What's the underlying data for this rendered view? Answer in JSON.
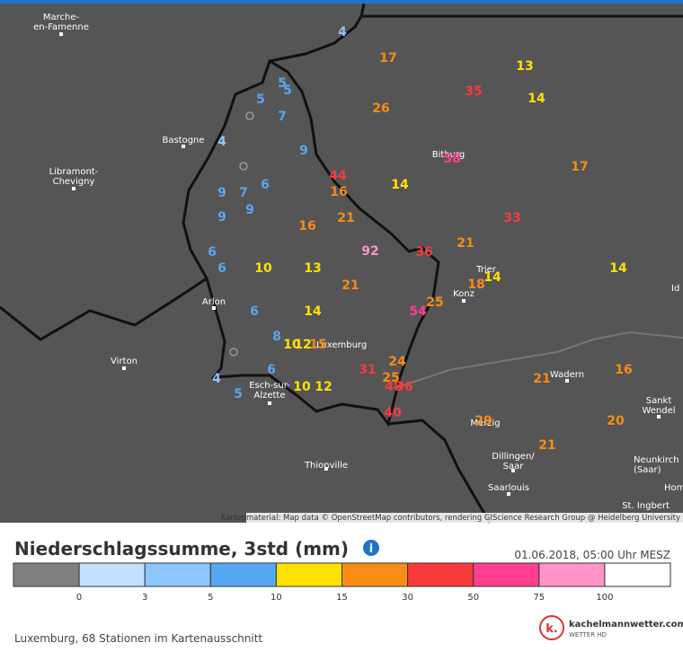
{
  "header": {
    "title": "Niederschlagssumme, 3std (mm)",
    "info": "i",
    "date": "01.06.2018, 05:00 Uhr MESZ"
  },
  "map": {
    "attribution": "Kartenmaterial: Map data © OpenStreetMap contributors, rendering GIScience Research Group @ Heidelberg University",
    "places": [
      "Marche-\nen-Famenne",
      "Bastogne",
      "Libramont-\nChevigny",
      "Arlon",
      "Virton",
      "Esch-sur-\nAlzette",
      "Luxemburg",
      "Thionville",
      "Bitburg",
      "Trier",
      "Konz",
      "Wadern",
      "Sankt\nWendel",
      "Merzig",
      "Dillingen/\nSaar",
      "Saarlouis",
      "Neunkirch\n(Saar)",
      "Hom",
      "Id",
      "St. Ingbert"
    ],
    "stations": [
      4,
      17,
      13,
      35,
      14,
      5,
      5,
      5,
      7,
      26,
      4,
      9,
      58,
      17,
      44,
      14,
      16,
      9,
      7,
      6,
      9,
      9,
      21,
      33,
      16,
      6,
      92,
      36,
      21,
      6,
      10,
      13,
      14,
      18,
      14,
      21,
      25,
      54,
      6,
      14,
      8,
      10,
      12,
      15,
      24,
      6,
      31,
      25,
      21,
      16,
      4,
      48,
      36,
      5,
      10,
      12,
      40,
      29,
      20,
      21
    ]
  },
  "legend": {
    "colors": [
      "#808080",
      "#c2e0ff",
      "#8cc6ff",
      "#56a8f2",
      "#ffe100",
      "#f88c14",
      "#f93a3a",
      "#ff3f8f",
      "#ff94c9",
      "#ffffff"
    ],
    "thresholds": [
      0,
      3,
      5,
      10,
      15,
      30,
      50,
      75,
      100
    ]
  },
  "footer": {
    "summary": "Luxemburg, 68 Stationen im Kartenausschnitt",
    "logo_mark": "k.",
    "logo": "kachelmannwetter.com",
    "logo_sub": "WETTER HD"
  }
}
